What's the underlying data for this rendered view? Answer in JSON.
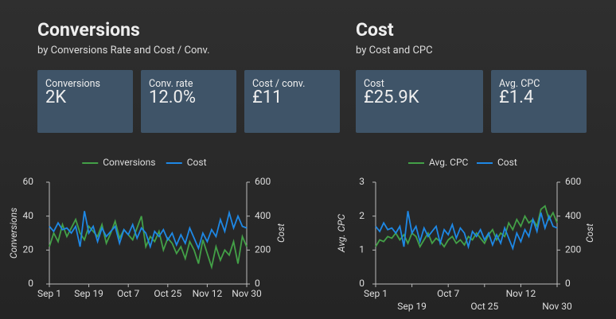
{
  "panels": [
    {
      "title": "Conversions",
      "subtitle": "by Conversions Rate and Cost / Conv.",
      "cards": [
        {
          "label": "Conversions",
          "value": "2K"
        },
        {
          "label": "Conv. rate",
          "value": "12.0%"
        },
        {
          "label": "Cost / conv.",
          "value": "£11"
        }
      ]
    },
    {
      "title": "Cost",
      "subtitle": "by Cost and CPC",
      "cards": [
        {
          "label": "Cost",
          "value": "£25.9K"
        },
        {
          "label": "Avg. CPC",
          "value": "£1.4"
        }
      ]
    }
  ],
  "chart_data": [
    {
      "type": "line",
      "ylabel": "Conversions",
      "y2label": "Cost",
      "legend": "top",
      "categories": [
        "Sep 1",
        null,
        null,
        null,
        null,
        null,
        null,
        null,
        null,
        "Sep 19",
        null,
        null,
        null,
        null,
        null,
        null,
        null,
        null,
        "Oct 7",
        null,
        null,
        null,
        null,
        null,
        null,
        null,
        null,
        "Oct 25",
        null,
        null,
        null,
        null,
        null,
        null,
        null,
        null,
        "Nov 12",
        null,
        null,
        null,
        null,
        null,
        null,
        null,
        null,
        "Nov 30"
      ],
      "ylim": [
        0,
        60
      ],
      "yticks": [
        0,
        20,
        40,
        60
      ],
      "y2lim": [
        0,
        600
      ],
      "y2ticks": [
        0,
        200,
        400,
        600
      ],
      "series": [
        {
          "name": "Conversions",
          "color": "#43a047",
          "values": [
            22,
            30,
            25,
            35,
            28,
            33,
            38,
            30,
            26,
            34,
            31,
            28,
            35,
            24,
            30,
            37,
            27,
            32,
            29,
            26,
            33,
            40,
            22,
            28,
            25,
            31,
            20,
            27,
            24,
            18,
            22,
            15,
            25,
            20,
            12,
            26,
            18,
            10,
            22,
            14,
            20,
            17,
            25,
            12,
            28,
            22
          ]
        },
        {
          "name": "Cost",
          "color": "#1e88e5",
          "axis": "y2",
          "values": [
            340,
            310,
            360,
            320,
            330,
            300,
            340,
            220,
            430,
            300,
            340,
            250,
            330,
            280,
            310,
            340,
            240,
            320,
            290,
            350,
            270,
            330,
            300,
            220,
            310,
            280,
            320,
            260,
            300,
            230,
            290,
            240,
            330,
            270,
            210,
            300,
            250,
            320,
            280,
            380,
            310,
            420,
            330,
            400,
            340,
            330
          ]
        }
      ]
    },
    {
      "type": "line",
      "ylabel": "Avg. CPC",
      "y2label": "Cost",
      "legend": "top",
      "categories": [
        "Sep 1",
        null,
        null,
        null,
        null,
        null,
        null,
        null,
        null,
        "Sep 19",
        null,
        null,
        null,
        null,
        null,
        null,
        null,
        null,
        "Oct 7",
        null,
        null,
        null,
        null,
        null,
        null,
        null,
        null,
        "Oct 25",
        null,
        null,
        null,
        null,
        null,
        null,
        null,
        null,
        "Nov 12",
        null,
        null,
        null,
        null,
        null,
        null,
        null,
        null,
        "Nov 30"
      ],
      "ylim": [
        0,
        3
      ],
      "yticks": [
        0,
        1,
        2,
        3
      ],
      "y2lim": [
        0,
        600
      ],
      "y2ticks": [
        0,
        200,
        400,
        600
      ],
      "series": [
        {
          "name": "Avg. CPC",
          "color": "#43a047",
          "values": [
            1.1,
            1.3,
            1.25,
            1.4,
            1.35,
            1.5,
            1.3,
            1.45,
            1.2,
            1.5,
            1.4,
            1.1,
            1.3,
            1.5,
            1.2,
            1.35,
            1.25,
            1.1,
            1.3,
            1.4,
            1.2,
            1.3,
            1.15,
            1.4,
            1.3,
            1.5,
            1.35,
            1.2,
            1.45,
            1.6,
            1.3,
            1.5,
            1.4,
            1.8,
            1.6,
            1.9,
            1.7,
            2.0,
            1.8,
            1.9,
            1.7,
            2.2,
            2.3,
            1.9,
            2.1,
            1.8
          ]
        },
        {
          "name": "Cost",
          "color": "#1e88e5",
          "axis": "y2",
          "values": [
            340,
            310,
            360,
            320,
            330,
            300,
            340,
            220,
            430,
            300,
            340,
            250,
            330,
            280,
            310,
            340,
            240,
            320,
            290,
            350,
            270,
            330,
            300,
            220,
            310,
            280,
            320,
            260,
            300,
            230,
            290,
            240,
            330,
            270,
            210,
            300,
            250,
            320,
            280,
            380,
            310,
            420,
            330,
            400,
            340,
            330
          ]
        }
      ]
    }
  ]
}
